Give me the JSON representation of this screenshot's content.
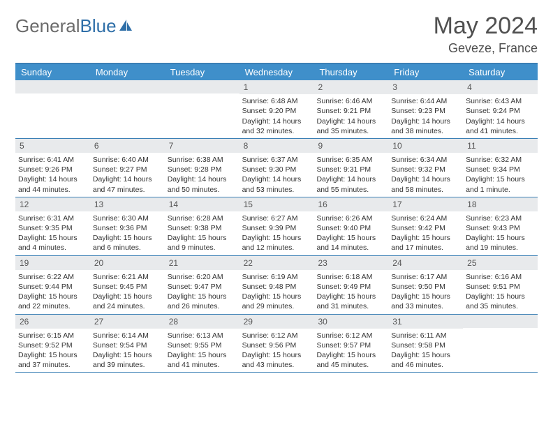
{
  "logo": {
    "text1": "General",
    "text2": "Blue"
  },
  "header": {
    "month": "May 2024",
    "location": "Geveze, France"
  },
  "colors": {
    "header_bar": "#3f8fca",
    "border": "#3a7fb5",
    "daynum_bg": "#e8eaec",
    "text": "#333333",
    "logo_gray": "#6b6b6b",
    "logo_blue": "#2f6fa8"
  },
  "days_of_week": [
    "Sunday",
    "Monday",
    "Tuesday",
    "Wednesday",
    "Thursday",
    "Friday",
    "Saturday"
  ],
  "weeks": [
    [
      null,
      null,
      null,
      {
        "n": "1",
        "sr": "Sunrise: 6:48 AM",
        "ss": "Sunset: 9:20 PM",
        "dl": "Daylight: 14 hours and 32 minutes."
      },
      {
        "n": "2",
        "sr": "Sunrise: 6:46 AM",
        "ss": "Sunset: 9:21 PM",
        "dl": "Daylight: 14 hours and 35 minutes."
      },
      {
        "n": "3",
        "sr": "Sunrise: 6:44 AM",
        "ss": "Sunset: 9:23 PM",
        "dl": "Daylight: 14 hours and 38 minutes."
      },
      {
        "n": "4",
        "sr": "Sunrise: 6:43 AM",
        "ss": "Sunset: 9:24 PM",
        "dl": "Daylight: 14 hours and 41 minutes."
      }
    ],
    [
      {
        "n": "5",
        "sr": "Sunrise: 6:41 AM",
        "ss": "Sunset: 9:26 PM",
        "dl": "Daylight: 14 hours and 44 minutes."
      },
      {
        "n": "6",
        "sr": "Sunrise: 6:40 AM",
        "ss": "Sunset: 9:27 PM",
        "dl": "Daylight: 14 hours and 47 minutes."
      },
      {
        "n": "7",
        "sr": "Sunrise: 6:38 AM",
        "ss": "Sunset: 9:28 PM",
        "dl": "Daylight: 14 hours and 50 minutes."
      },
      {
        "n": "8",
        "sr": "Sunrise: 6:37 AM",
        "ss": "Sunset: 9:30 PM",
        "dl": "Daylight: 14 hours and 53 minutes."
      },
      {
        "n": "9",
        "sr": "Sunrise: 6:35 AM",
        "ss": "Sunset: 9:31 PM",
        "dl": "Daylight: 14 hours and 55 minutes."
      },
      {
        "n": "10",
        "sr": "Sunrise: 6:34 AM",
        "ss": "Sunset: 9:32 PM",
        "dl": "Daylight: 14 hours and 58 minutes."
      },
      {
        "n": "11",
        "sr": "Sunrise: 6:32 AM",
        "ss": "Sunset: 9:34 PM",
        "dl": "Daylight: 15 hours and 1 minute."
      }
    ],
    [
      {
        "n": "12",
        "sr": "Sunrise: 6:31 AM",
        "ss": "Sunset: 9:35 PM",
        "dl": "Daylight: 15 hours and 4 minutes."
      },
      {
        "n": "13",
        "sr": "Sunrise: 6:30 AM",
        "ss": "Sunset: 9:36 PM",
        "dl": "Daylight: 15 hours and 6 minutes."
      },
      {
        "n": "14",
        "sr": "Sunrise: 6:28 AM",
        "ss": "Sunset: 9:38 PM",
        "dl": "Daylight: 15 hours and 9 minutes."
      },
      {
        "n": "15",
        "sr": "Sunrise: 6:27 AM",
        "ss": "Sunset: 9:39 PM",
        "dl": "Daylight: 15 hours and 12 minutes."
      },
      {
        "n": "16",
        "sr": "Sunrise: 6:26 AM",
        "ss": "Sunset: 9:40 PM",
        "dl": "Daylight: 15 hours and 14 minutes."
      },
      {
        "n": "17",
        "sr": "Sunrise: 6:24 AM",
        "ss": "Sunset: 9:42 PM",
        "dl": "Daylight: 15 hours and 17 minutes."
      },
      {
        "n": "18",
        "sr": "Sunrise: 6:23 AM",
        "ss": "Sunset: 9:43 PM",
        "dl": "Daylight: 15 hours and 19 minutes."
      }
    ],
    [
      {
        "n": "19",
        "sr": "Sunrise: 6:22 AM",
        "ss": "Sunset: 9:44 PM",
        "dl": "Daylight: 15 hours and 22 minutes."
      },
      {
        "n": "20",
        "sr": "Sunrise: 6:21 AM",
        "ss": "Sunset: 9:45 PM",
        "dl": "Daylight: 15 hours and 24 minutes."
      },
      {
        "n": "21",
        "sr": "Sunrise: 6:20 AM",
        "ss": "Sunset: 9:47 PM",
        "dl": "Daylight: 15 hours and 26 minutes."
      },
      {
        "n": "22",
        "sr": "Sunrise: 6:19 AM",
        "ss": "Sunset: 9:48 PM",
        "dl": "Daylight: 15 hours and 29 minutes."
      },
      {
        "n": "23",
        "sr": "Sunrise: 6:18 AM",
        "ss": "Sunset: 9:49 PM",
        "dl": "Daylight: 15 hours and 31 minutes."
      },
      {
        "n": "24",
        "sr": "Sunrise: 6:17 AM",
        "ss": "Sunset: 9:50 PM",
        "dl": "Daylight: 15 hours and 33 minutes."
      },
      {
        "n": "25",
        "sr": "Sunrise: 6:16 AM",
        "ss": "Sunset: 9:51 PM",
        "dl": "Daylight: 15 hours and 35 minutes."
      }
    ],
    [
      {
        "n": "26",
        "sr": "Sunrise: 6:15 AM",
        "ss": "Sunset: 9:52 PM",
        "dl": "Daylight: 15 hours and 37 minutes."
      },
      {
        "n": "27",
        "sr": "Sunrise: 6:14 AM",
        "ss": "Sunset: 9:54 PM",
        "dl": "Daylight: 15 hours and 39 minutes."
      },
      {
        "n": "28",
        "sr": "Sunrise: 6:13 AM",
        "ss": "Sunset: 9:55 PM",
        "dl": "Daylight: 15 hours and 41 minutes."
      },
      {
        "n": "29",
        "sr": "Sunrise: 6:12 AM",
        "ss": "Sunset: 9:56 PM",
        "dl": "Daylight: 15 hours and 43 minutes."
      },
      {
        "n": "30",
        "sr": "Sunrise: 6:12 AM",
        "ss": "Sunset: 9:57 PM",
        "dl": "Daylight: 15 hours and 45 minutes."
      },
      {
        "n": "31",
        "sr": "Sunrise: 6:11 AM",
        "ss": "Sunset: 9:58 PM",
        "dl": "Daylight: 15 hours and 46 minutes."
      },
      null
    ]
  ]
}
